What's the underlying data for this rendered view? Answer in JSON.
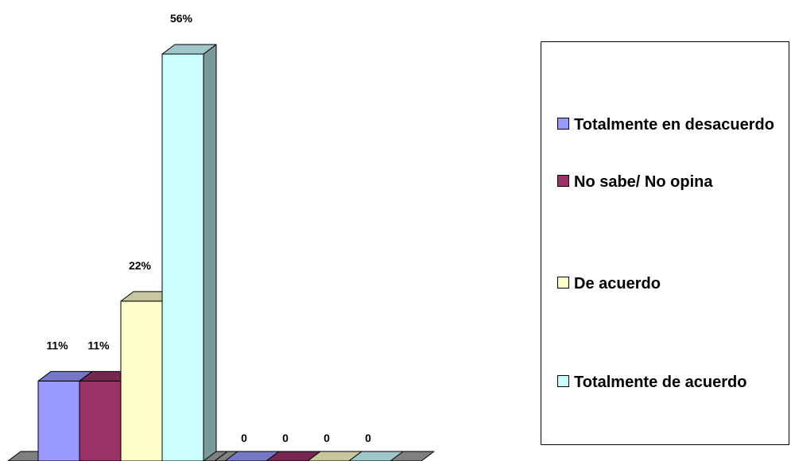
{
  "chart_data": {
    "type": "bar",
    "three_d": true,
    "groups": [
      "",
      ""
    ],
    "series": [
      {
        "name": "Totalmente en desacuerdo",
        "color": "#9999ff",
        "values": [
          11,
          0
        ],
        "labels": [
          "11%",
          "0"
        ]
      },
      {
        "name": "No sabe/ No opina",
        "color": "#993366",
        "values": [
          11,
          0
        ],
        "labels": [
          "11%",
          "0"
        ]
      },
      {
        "name": "De acuerdo",
        "color": "#ffffcc",
        "values": [
          22,
          0
        ],
        "labels": [
          "22%",
          "0"
        ]
      },
      {
        "name": "Totalmente de acuerdo",
        "color": "#ccffff",
        "values": [
          56,
          0
        ],
        "labels": [
          "56%",
          "0"
        ]
      }
    ],
    "ylim": [
      0,
      56
    ],
    "grid": false,
    "legend_position": "right"
  }
}
